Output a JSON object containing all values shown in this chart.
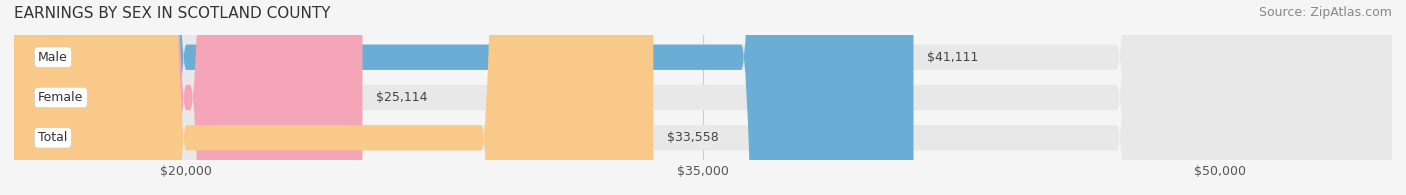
{
  "title": "EARNINGS BY SEX IN SCOTLAND COUNTY",
  "source": "Source: ZipAtlas.com",
  "categories": [
    "Male",
    "Female",
    "Total"
  ],
  "values": [
    41111,
    25114,
    33558
  ],
  "bar_colors": [
    "#6aaed6",
    "#f4a6b8",
    "#f9c98a"
  ],
  "label_colors": [
    "#ffffff",
    "#555555",
    "#555555"
  ],
  "value_labels": [
    "$41,111",
    "$25,114",
    "$33,558"
  ],
  "label_bg_color": "#ffffff",
  "bar_bg_color": "#e8e8e8",
  "xlim_min": 15000,
  "xlim_max": 55000,
  "xticks": [
    20000,
    35000,
    50000
  ],
  "xtick_labels": [
    "$20,000",
    "$35,000",
    "$50,000"
  ],
  "background_color": "#f5f5f5",
  "title_fontsize": 11,
  "source_fontsize": 9,
  "bar_label_fontsize": 9,
  "tick_fontsize": 9
}
